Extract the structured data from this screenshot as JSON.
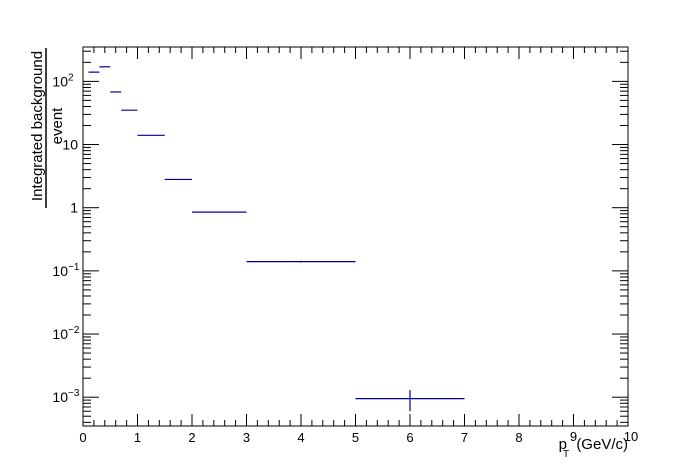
{
  "chart_data": {
    "type": "histogram",
    "title": "",
    "xlabel_main": "p",
    "xlabel_sub": "T",
    "xlabel_unit": "(GeV/c)",
    "ylabel_top": "Integrated background",
    "ylabel_bottom": "event",
    "xlim": [
      0,
      10
    ],
    "ylim": [
      0.00035,
      350
    ],
    "yscale": "log",
    "grid": false,
    "legend": "none",
    "x_ticks": [
      "0",
      "1",
      "2",
      "3",
      "4",
      "5",
      "6",
      "7",
      "8",
      "9",
      "10"
    ],
    "y_ticks": [
      {
        "value": 100,
        "base": "10",
        "exp": "2"
      },
      {
        "value": 10,
        "base": "10",
        "exp": ""
      },
      {
        "value": 1,
        "base": "1",
        "exp": ""
      },
      {
        "value": 0.1,
        "base": "10",
        "exp": "−1"
      },
      {
        "value": 0.01,
        "base": "10",
        "exp": "−2"
      },
      {
        "value": 0.001,
        "base": "10",
        "exp": "−3"
      }
    ],
    "series": [
      {
        "color": "#000099",
        "bins": [
          {
            "x0": 0.1,
            "x1": 0.3,
            "y": 140,
            "err": 0
          },
          {
            "x0": 0.3,
            "x1": 0.5,
            "y": 170,
            "err": 0
          },
          {
            "x0": 0.5,
            "x1": 0.7,
            "y": 68,
            "err": 0
          },
          {
            "x0": 0.7,
            "x1": 1.0,
            "y": 35,
            "err": 0
          },
          {
            "x0": 1.0,
            "x1": 1.5,
            "y": 14,
            "err": 0
          },
          {
            "x0": 1.5,
            "x1": 2.0,
            "y": 2.8,
            "err": 0
          },
          {
            "x0": 2.0,
            "x1": 3.0,
            "y": 0.85,
            "err": 0
          },
          {
            "x0": 3.0,
            "x1": 5.0,
            "y": 0.14,
            "err": 0.004
          },
          {
            "x0": 5.0,
            "x1": 7.0,
            "y": 0.00095,
            "err": 0.00035
          }
        ]
      }
    ]
  }
}
